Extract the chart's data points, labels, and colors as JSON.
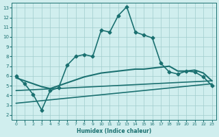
{
  "xlabel": "Humidex (Indice chaleur)",
  "ylabel": "",
  "xlim": [
    -0.5,
    23.5
  ],
  "ylim": [
    1.5,
    13.5
  ],
  "xticks": [
    0,
    1,
    2,
    3,
    4,
    5,
    6,
    7,
    8,
    9,
    10,
    11,
    12,
    13,
    14,
    15,
    16,
    17,
    18,
    19,
    20,
    21,
    22,
    23
  ],
  "yticks": [
    2,
    3,
    4,
    5,
    6,
    7,
    8,
    9,
    10,
    11,
    12,
    13
  ],
  "bg_color": "#d0eeee",
  "line_color": "#1a7070",
  "grid_color": "#a0cccc",
  "lines": [
    {
      "x": [
        0,
        1,
        2,
        3,
        4,
        5,
        6,
        7,
        8,
        9,
        10,
        11,
        12,
        13,
        14,
        15,
        16,
        17,
        18,
        19,
        20,
        21,
        22,
        23
      ],
      "y": [
        6.0,
        5.2,
        4.1,
        2.5,
        4.5,
        4.8,
        7.1,
        8.0,
        8.2,
        8.0,
        10.7,
        10.5,
        12.2,
        13.1,
        10.5,
        10.2,
        9.9,
        7.3,
        6.4,
        6.2,
        6.5,
        6.4,
        5.9,
        5.0
      ],
      "marker": "D",
      "markersize": 2.5,
      "linewidth": 1.2
    },
    {
      "x": [
        0,
        1,
        2,
        3,
        4,
        5,
        6,
        7,
        8,
        9,
        10,
        11,
        12,
        13,
        14,
        15,
        16,
        17,
        18,
        19,
        20,
        21,
        22,
        23
      ],
      "y": [
        5.8,
        5.5,
        5.2,
        4.9,
        4.7,
        5.0,
        5.3,
        5.6,
        5.9,
        6.1,
        6.3,
        6.4,
        6.5,
        6.6,
        6.7,
        6.7,
        6.8,
        6.9,
        7.0,
        6.5,
        6.5,
        6.6,
        6.3,
        5.5
      ],
      "marker": null,
      "markersize": 0,
      "linewidth": 1.5
    },
    {
      "x": [
        0,
        23
      ],
      "y": [
        4.5,
        5.5
      ],
      "marker": null,
      "markersize": 0,
      "linewidth": 1.2
    },
    {
      "x": [
        0,
        23
      ],
      "y": [
        3.2,
        5.2
      ],
      "marker": null,
      "markersize": 0,
      "linewidth": 1.2
    }
  ]
}
